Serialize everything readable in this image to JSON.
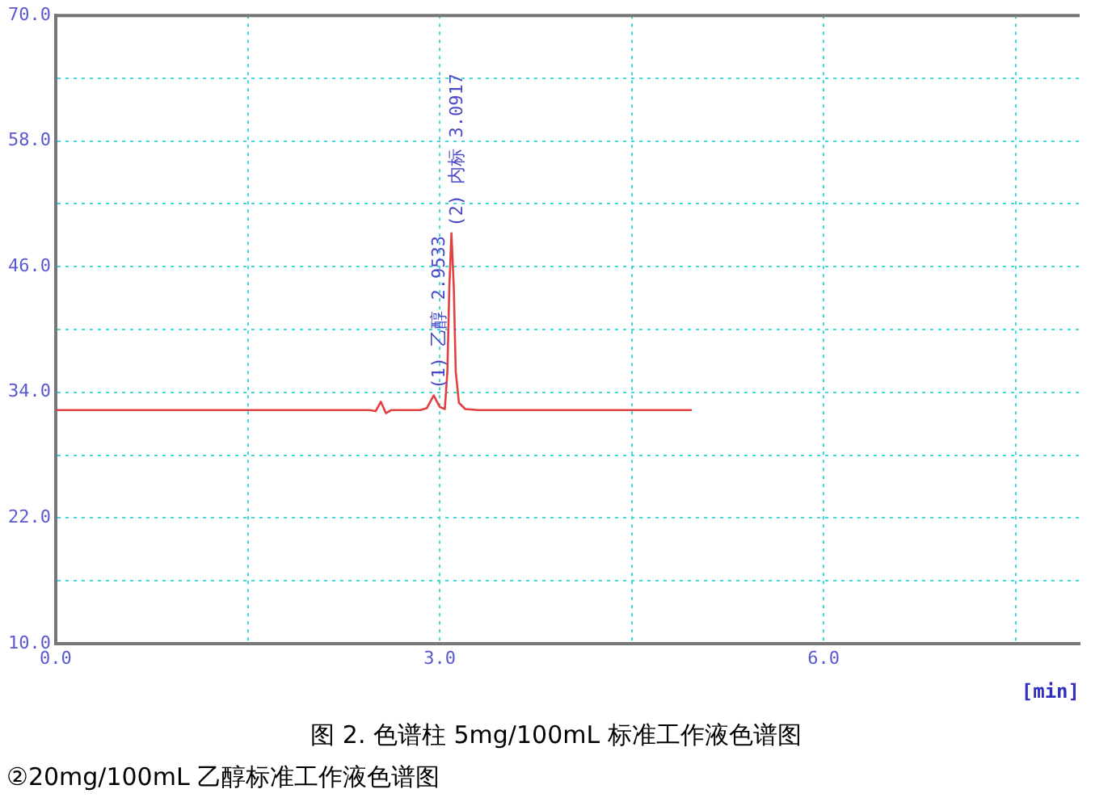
{
  "chart_data": {
    "type": "line",
    "xlabel": "[min]",
    "x": [
      0,
      1.0,
      2.0,
      2.45,
      2.5,
      2.54,
      2.58,
      2.62,
      2.85,
      2.9,
      2.9533,
      3.0,
      3.04,
      3.06,
      3.075,
      3.0917,
      3.11,
      3.125,
      3.15,
      3.2,
      3.3,
      4.0,
      4.97
    ],
    "series": [
      {
        "color": "#e04040",
        "values": [
          32.3,
          32.3,
          32.3,
          32.3,
          32.2,
          33.1,
          32.0,
          32.3,
          32.3,
          32.5,
          33.7,
          32.6,
          32.4,
          36,
          44,
          49.2,
          44,
          36,
          33,
          32.4,
          32.3,
          32.3,
          32.3
        ]
      }
    ],
    "xlim": [
      0,
      8.0
    ],
    "xticks": [
      {
        "value": 0,
        "label": "0.0"
      },
      {
        "value": 1.5,
        "label": null
      },
      {
        "value": 3,
        "label": "3.0"
      },
      {
        "value": 4.5,
        "label": null
      },
      {
        "value": 6,
        "label": "6.0"
      },
      {
        "value": 7.5,
        "label": null
      }
    ],
    "ylim": [
      10,
      70
    ],
    "yticks": [
      {
        "value": 10,
        "label": "10.0"
      },
      {
        "value": 16,
        "label": null
      },
      {
        "value": 22,
        "label": "22.0"
      },
      {
        "value": 28,
        "label": null
      },
      {
        "value": 34,
        "label": "34.0"
      },
      {
        "value": 40,
        "label": null
      },
      {
        "value": 46,
        "label": "46.0"
      },
      {
        "value": 52,
        "label": null
      },
      {
        "value": 58,
        "label": "58.0"
      },
      {
        "value": 64,
        "label": null
      },
      {
        "value": 70,
        "label": "70.0"
      }
    ],
    "grid": true,
    "legend": false,
    "marker": "none",
    "line_style": "solid",
    "annotations": [
      {
        "text": "(1) 乙醇 2.9533",
        "x": 2.9533,
        "y": 33.7
      },
      {
        "text": "(2) 内标 3.0917",
        "x": 3.0917,
        "y": 49.2
      },
      "图 2. 色谱柱 5mg/100mL 标准工作液色谱图",
      "②20mg/100mL  乙醇标准工作液色谱图"
    ]
  }
}
